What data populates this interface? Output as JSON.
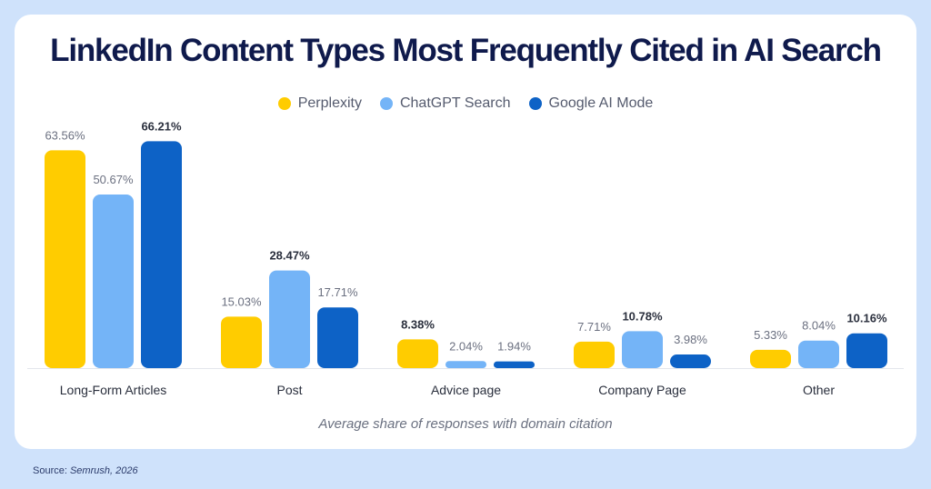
{
  "title": "LinkedIn Content Types Most Frequently Cited in AI Search",
  "caption": "Average share of responses with domain citation",
  "source": {
    "label": "Source: ",
    "publisher": "Semrush, 2026"
  },
  "colors": {
    "Perplexity": "#ffcc00",
    "ChatGPT Search": "#74b4f7",
    "Google AI Mode": "#0d62c6"
  },
  "chart_data": {
    "type": "bar",
    "title": "LinkedIn Content Types Most Frequently Cited in AI Search",
    "xlabel": "Average share of responses with domain citation",
    "ylabel": "",
    "legend_position": "top-center",
    "grid": false,
    "ylim": [
      0,
      70
    ],
    "categories": [
      "Long-Form Articles",
      "Post",
      "Advice page",
      "Company Page",
      "Other"
    ],
    "series": [
      {
        "name": "Perplexity",
        "values": [
          63.56,
          15.03,
          8.38,
          7.71,
          5.33
        ],
        "labels": [
          "63.56%",
          "15.03%",
          "8.38%",
          "7.71%",
          "5.33%"
        ]
      },
      {
        "name": "ChatGPT Search",
        "values": [
          50.67,
          28.47,
          2.04,
          10.78,
          8.04
        ],
        "labels": [
          "50.67%",
          "28.47%",
          "2.04%",
          "10.78%",
          "8.04%"
        ]
      },
      {
        "name": "Google AI Mode",
        "values": [
          66.21,
          17.71,
          1.94,
          3.98,
          10.16
        ],
        "labels": [
          "66.21%",
          "17.71%",
          "1.94%",
          "3.98%",
          "10.16%"
        ]
      }
    ],
    "emphasized_labels": [
      "66.21%",
      "28.47%",
      "8.38%",
      "10.78%",
      "10.16%"
    ]
  }
}
